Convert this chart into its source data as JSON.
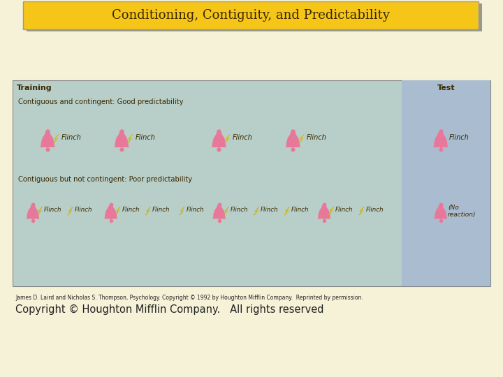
{
  "title": "Conditioning, Contiguity, and Predictability",
  "title_bg": "#F5C518",
  "title_border": "#999999",
  "title_fontsize": 13,
  "page_bg": "#F5F2D8",
  "diagram_bg": "#B8CEC8",
  "test_bg": "#AABDD0",
  "row1_label": "Contiguous and contingent: Good predictability",
  "row2_label": "Contiguous but not contingent: Poor predictability",
  "training_label": "Training",
  "test_label": "Test",
  "flinch_label": "Flinch",
  "no_reaction_label": "(No\nreaction)",
  "caption_line1": "James D. Laird and Nicholas S. Thompson, Psychology. Copyright © 1992 by Houghton Mifflin Company.  Reprinted by permission.",
  "caption_line2": "Copyright © Houghton Mifflin Company.   All rights reserved",
  "bell_color": "#E8789A",
  "bolt_color": "#F0D840",
  "text_color": "#3A2800",
  "label_color": "#3A2800",
  "caption_color": "#222222",
  "shadow_color": "#999988"
}
